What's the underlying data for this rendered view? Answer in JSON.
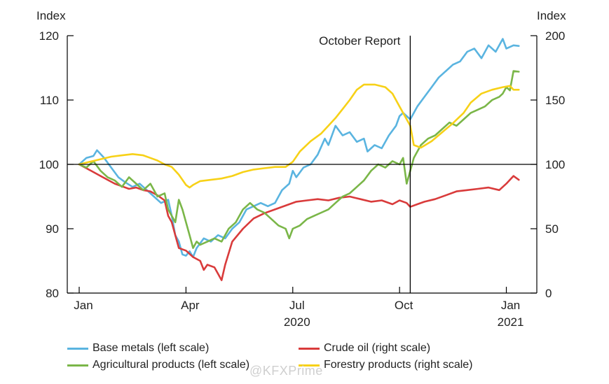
{
  "chart_data": {
    "type": "line",
    "left_axis_title": "Index",
    "right_axis_title": "Index",
    "x_ticks": [
      {
        "label": "Jan",
        "year": ""
      },
      {
        "label": "Apr",
        "year": ""
      },
      {
        "label": "Jul",
        "year": "2020"
      },
      {
        "label": "Oct",
        "year": ""
      },
      {
        "label": "Jan",
        "year": "2021"
      }
    ],
    "x_tick_months": [
      0,
      3,
      6,
      9,
      12
    ],
    "xlim": [
      0,
      12.6
    ],
    "left_ylim": [
      80,
      120
    ],
    "right_ylim": [
      0,
      200
    ],
    "left_ticks": [
      "80",
      "90",
      "100",
      "110",
      "120"
    ],
    "right_ticks": [
      "0",
      "50",
      "100",
      "150",
      "200"
    ],
    "reference_line": {
      "axis": "left",
      "value": 100
    },
    "annotation": {
      "text": "October Report",
      "x": 9.3
    },
    "colors": {
      "Base metals": "#5ab4e0",
      "Crude oil": "#d93b3b",
      "Agricultural products": "#7ab648",
      "Forestry products": "#f7d117"
    },
    "series": [
      {
        "name": "Base metals",
        "legend": "Base metals (left scale)",
        "axis": "left",
        "points": [
          [
            0.0,
            100.0
          ],
          [
            0.2,
            101.0
          ],
          [
            0.4,
            101.3
          ],
          [
            0.5,
            102.2
          ],
          [
            0.7,
            101.0
          ],
          [
            0.9,
            99.5
          ],
          [
            1.1,
            98.0
          ],
          [
            1.3,
            97.2
          ],
          [
            1.5,
            96.5
          ],
          [
            1.7,
            97.0
          ],
          [
            1.9,
            96.0
          ],
          [
            2.1,
            95.0
          ],
          [
            2.3,
            94.0
          ],
          [
            2.5,
            94.5
          ],
          [
            2.6,
            92.0
          ],
          [
            2.7,
            89.0
          ],
          [
            2.8,
            88.0
          ],
          [
            2.9,
            86.0
          ],
          [
            3.0,
            85.8
          ],
          [
            3.1,
            86.5
          ],
          [
            3.2,
            85.6
          ],
          [
            3.3,
            87.0
          ],
          [
            3.5,
            88.5
          ],
          [
            3.7,
            88.0
          ],
          [
            3.9,
            89.0
          ],
          [
            4.1,
            88.5
          ],
          [
            4.3,
            90.0
          ],
          [
            4.5,
            91.0
          ],
          [
            4.7,
            93.0
          ],
          [
            4.9,
            93.5
          ],
          [
            5.1,
            94.0
          ],
          [
            5.3,
            93.5
          ],
          [
            5.5,
            94.0
          ],
          [
            5.7,
            96.0
          ],
          [
            5.9,
            97.0
          ],
          [
            6.0,
            99.0
          ],
          [
            6.1,
            98.0
          ],
          [
            6.3,
            99.5
          ],
          [
            6.5,
            100.0
          ],
          [
            6.7,
            101.5
          ],
          [
            6.9,
            104.0
          ],
          [
            7.0,
            103.0
          ],
          [
            7.2,
            106.0
          ],
          [
            7.4,
            104.5
          ],
          [
            7.6,
            105.0
          ],
          [
            7.8,
            103.5
          ],
          [
            8.0,
            104.0
          ],
          [
            8.1,
            102.0
          ],
          [
            8.3,
            103.0
          ],
          [
            8.5,
            102.5
          ],
          [
            8.7,
            104.5
          ],
          [
            8.9,
            106.0
          ],
          [
            9.0,
            107.5
          ],
          [
            9.1,
            108.0
          ],
          [
            9.3,
            107.0
          ],
          [
            9.5,
            109.0
          ],
          [
            9.7,
            110.5
          ],
          [
            9.9,
            112.0
          ],
          [
            10.1,
            113.5
          ],
          [
            10.3,
            114.5
          ],
          [
            10.5,
            115.5
          ],
          [
            10.7,
            116.0
          ],
          [
            10.9,
            117.5
          ],
          [
            11.1,
            118.0
          ],
          [
            11.3,
            116.5
          ],
          [
            11.5,
            118.5
          ],
          [
            11.7,
            117.5
          ],
          [
            11.9,
            119.5
          ],
          [
            12.0,
            118.0
          ],
          [
            12.2,
            118.5
          ],
          [
            12.35,
            118.4
          ]
        ]
      },
      {
        "name": "Crude oil",
        "legend": "Crude oil (right scale)",
        "axis": "right",
        "points": [
          [
            0.0,
            100.0
          ],
          [
            0.2,
            97.0
          ],
          [
            0.4,
            94.0
          ],
          [
            0.6,
            91.0
          ],
          [
            0.8,
            88.0
          ],
          [
            1.0,
            85.0
          ],
          [
            1.2,
            83.0
          ],
          [
            1.4,
            81.0
          ],
          [
            1.6,
            82.0
          ],
          [
            1.8,
            80.0
          ],
          [
            2.0,
            79.0
          ],
          [
            2.2,
            76.0
          ],
          [
            2.4,
            72.0
          ],
          [
            2.5,
            60.0
          ],
          [
            2.6,
            55.0
          ],
          [
            2.7,
            45.0
          ],
          [
            2.8,
            35.0
          ],
          [
            3.0,
            33.0
          ],
          [
            3.2,
            28.0
          ],
          [
            3.4,
            25.0
          ],
          [
            3.5,
            18.0
          ],
          [
            3.6,
            22.0
          ],
          [
            3.8,
            20.0
          ],
          [
            3.9,
            15.0
          ],
          [
            4.0,
            10.0
          ],
          [
            4.1,
            22.0
          ],
          [
            4.3,
            40.0
          ],
          [
            4.6,
            50.0
          ],
          [
            4.9,
            58.0
          ],
          [
            5.2,
            62.0
          ],
          [
            5.5,
            65.0
          ],
          [
            5.8,
            68.0
          ],
          [
            6.1,
            71.0
          ],
          [
            6.4,
            72.0
          ],
          [
            6.7,
            73.0
          ],
          [
            7.0,
            72.0
          ],
          [
            7.3,
            74.0
          ],
          [
            7.6,
            75.0
          ],
          [
            7.9,
            73.0
          ],
          [
            8.2,
            71.0
          ],
          [
            8.5,
            72.0
          ],
          [
            8.8,
            69.0
          ],
          [
            9.0,
            72.0
          ],
          [
            9.2,
            70.0
          ],
          [
            9.3,
            67.0
          ],
          [
            9.5,
            69.0
          ],
          [
            9.7,
            71.0
          ],
          [
            10.0,
            73.0
          ],
          [
            10.3,
            76.0
          ],
          [
            10.6,
            79.0
          ],
          [
            10.9,
            80.0
          ],
          [
            11.2,
            81.0
          ],
          [
            11.5,
            82.0
          ],
          [
            11.8,
            80.0
          ],
          [
            12.0,
            85.0
          ],
          [
            12.2,
            91.0
          ],
          [
            12.35,
            88.0
          ]
        ]
      },
      {
        "name": "Agricultural products",
        "legend": "Agricultural products (left scale)",
        "axis": "left",
        "points": [
          [
            0.0,
            100.0
          ],
          [
            0.2,
            99.5
          ],
          [
            0.4,
            100.5
          ],
          [
            0.6,
            99.0
          ],
          [
            0.8,
            98.0
          ],
          [
            1.0,
            97.5
          ],
          [
            1.2,
            96.5
          ],
          [
            1.4,
            98.0
          ],
          [
            1.6,
            97.0
          ],
          [
            1.8,
            96.0
          ],
          [
            2.0,
            97.0
          ],
          [
            2.2,
            95.0
          ],
          [
            2.4,
            95.5
          ],
          [
            2.5,
            93.0
          ],
          [
            2.6,
            92.0
          ],
          [
            2.7,
            91.0
          ],
          [
            2.8,
            94.5
          ],
          [
            2.9,
            93.0
          ],
          [
            3.0,
            91.0
          ],
          [
            3.1,
            89.0
          ],
          [
            3.2,
            87.0
          ],
          [
            3.3,
            88.0
          ],
          [
            3.4,
            87.5
          ],
          [
            3.6,
            88.0
          ],
          [
            3.8,
            88.5
          ],
          [
            4.0,
            88.0
          ],
          [
            4.2,
            90.0
          ],
          [
            4.4,
            91.0
          ],
          [
            4.6,
            93.0
          ],
          [
            4.8,
            94.0
          ],
          [
            5.0,
            93.0
          ],
          [
            5.2,
            92.5
          ],
          [
            5.4,
            91.5
          ],
          [
            5.6,
            90.5
          ],
          [
            5.8,
            90.0
          ],
          [
            5.9,
            88.5
          ],
          [
            6.0,
            90.0
          ],
          [
            6.2,
            90.5
          ],
          [
            6.4,
            91.5
          ],
          [
            6.6,
            92.0
          ],
          [
            6.8,
            92.5
          ],
          [
            7.0,
            93.0
          ],
          [
            7.2,
            94.0
          ],
          [
            7.4,
            95.0
          ],
          [
            7.6,
            95.5
          ],
          [
            7.8,
            96.5
          ],
          [
            8.0,
            97.5
          ],
          [
            8.2,
            99.0
          ],
          [
            8.4,
            100.0
          ],
          [
            8.6,
            99.5
          ],
          [
            8.8,
            100.5
          ],
          [
            9.0,
            100.0
          ],
          [
            9.1,
            101.0
          ],
          [
            9.2,
            97.0
          ],
          [
            9.3,
            99.0
          ],
          [
            9.4,
            101.0
          ],
          [
            9.6,
            103.0
          ],
          [
            9.8,
            104.0
          ],
          [
            10.0,
            104.5
          ],
          [
            10.2,
            105.5
          ],
          [
            10.4,
            106.5
          ],
          [
            10.6,
            106.0
          ],
          [
            10.8,
            107.0
          ],
          [
            11.0,
            108.0
          ],
          [
            11.2,
            108.5
          ],
          [
            11.4,
            109.0
          ],
          [
            11.6,
            110.0
          ],
          [
            11.8,
            110.5
          ],
          [
            11.9,
            111.0
          ],
          [
            12.0,
            112.0
          ],
          [
            12.1,
            111.5
          ],
          [
            12.2,
            114.5
          ],
          [
            12.35,
            114.4
          ]
        ]
      },
      {
        "name": "Forestry products",
        "legend": "Forestry products (right scale)",
        "axis": "right",
        "points": [
          [
            0.0,
            100.0
          ],
          [
            0.3,
            102.0
          ],
          [
            0.6,
            104.0
          ],
          [
            0.9,
            106.0
          ],
          [
            1.2,
            107.0
          ],
          [
            1.5,
            108.0
          ],
          [
            1.8,
            107.0
          ],
          [
            2.0,
            105.0
          ],
          [
            2.2,
            103.0
          ],
          [
            2.4,
            100.0
          ],
          [
            2.6,
            98.0
          ],
          [
            2.8,
            92.0
          ],
          [
            3.0,
            84.0
          ],
          [
            3.1,
            82.0
          ],
          [
            3.2,
            84.0
          ],
          [
            3.4,
            87.0
          ],
          [
            3.7,
            88.0
          ],
          [
            4.0,
            89.0
          ],
          [
            4.3,
            91.0
          ],
          [
            4.6,
            94.0
          ],
          [
            4.9,
            96.0
          ],
          [
            5.2,
            97.0
          ],
          [
            5.5,
            98.0
          ],
          [
            5.8,
            98.0
          ],
          [
            6.0,
            102.0
          ],
          [
            6.2,
            110.0
          ],
          [
            6.5,
            118.0
          ],
          [
            6.8,
            124.0
          ],
          [
            7.0,
            130.0
          ],
          [
            7.2,
            136.0
          ],
          [
            7.4,
            143.0
          ],
          [
            7.6,
            150.0
          ],
          [
            7.8,
            158.0
          ],
          [
            8.0,
            162.0
          ],
          [
            8.3,
            162.0
          ],
          [
            8.6,
            160.0
          ],
          [
            8.8,
            155.0
          ],
          [
            9.0,
            145.0
          ],
          [
            9.2,
            135.0
          ],
          [
            9.3,
            130.0
          ],
          [
            9.4,
            115.0
          ],
          [
            9.6,
            113.0
          ],
          [
            9.9,
            118.0
          ],
          [
            10.2,
            125.0
          ],
          [
            10.5,
            132.0
          ],
          [
            10.8,
            140.0
          ],
          [
            11.0,
            148.0
          ],
          [
            11.3,
            155.0
          ],
          [
            11.6,
            158.0
          ],
          [
            11.9,
            160.0
          ],
          [
            12.1,
            161.0
          ],
          [
            12.2,
            158.0
          ],
          [
            12.35,
            158.0
          ]
        ]
      }
    ]
  },
  "watermark": "@KFXPrime"
}
